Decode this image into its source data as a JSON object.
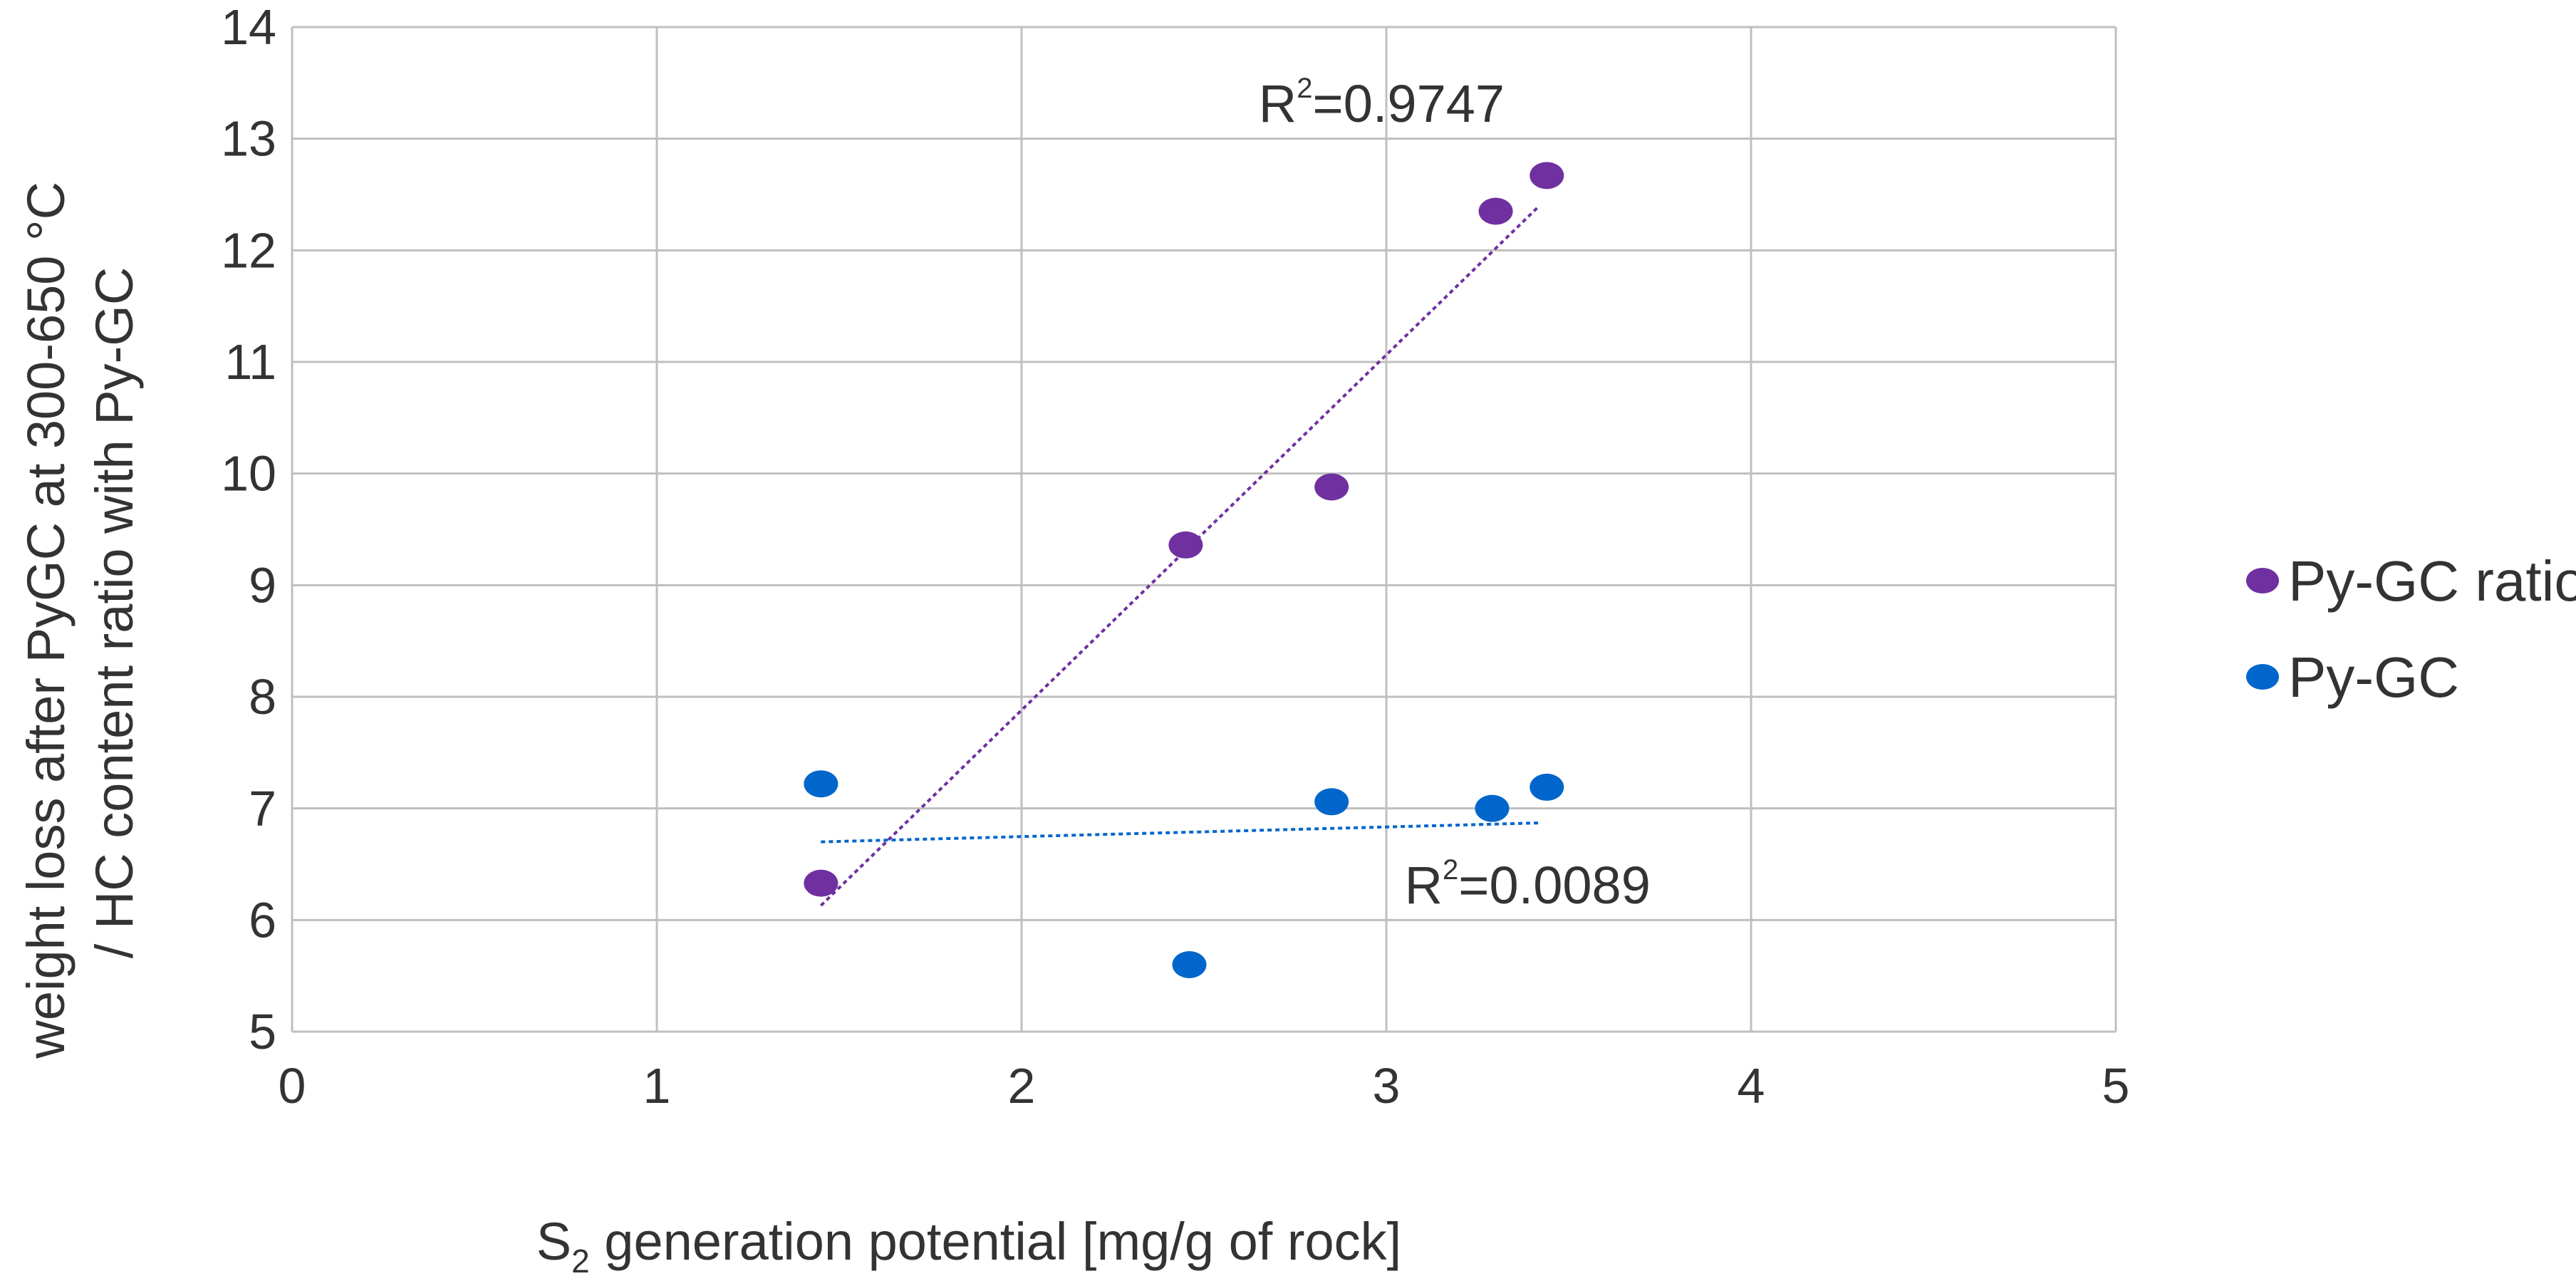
{
  "chart_data": {
    "type": "scatter",
    "title": "",
    "xlabel": {
      "prefix": "S",
      "subscript": "2",
      "suffix": " generation  potential [mg/g of rock]"
    },
    "ylabel": {
      "line1": "weight loss after PyGC at 300-650 °C",
      "line2": "/ HC content ratio with Py-GC"
    },
    "xlim": [
      0,
      5
    ],
    "ylim": [
      5,
      14
    ],
    "xticks": [
      "0",
      "1",
      "2",
      "3",
      "4",
      "5"
    ],
    "yticks": [
      "5",
      "6",
      "7",
      "8",
      "9",
      "10",
      "11",
      "12",
      "13",
      "14"
    ],
    "grid": true,
    "legend_position": "right",
    "series": [
      {
        "name": "Py-GC ratio",
        "color": "#7030a0",
        "points": [
          {
            "x": 1.45,
            "y": 6.33
          },
          {
            "x": 2.45,
            "y": 9.36
          },
          {
            "x": 2.85,
            "y": 9.88
          },
          {
            "x": 3.3,
            "y": 12.35
          },
          {
            "x": 3.44,
            "y": 12.67
          }
        ],
        "trendline": {
          "x": [
            1.45,
            3.42
          ],
          "y": [
            6.13,
            12.4
          ]
        },
        "r2_label": {
          "prefix": "R",
          "sup": "2",
          "value": "=0.9747",
          "at": {
            "x": 2.65,
            "y": 13.15
          }
        }
      },
      {
        "name": "Py-GC",
        "color": "#0066cc",
        "points": [
          {
            "x": 1.45,
            "y": 7.22
          },
          {
            "x": 2.46,
            "y": 5.6
          },
          {
            "x": 2.85,
            "y": 7.06
          },
          {
            "x": 3.29,
            "y": 7.0
          },
          {
            "x": 3.44,
            "y": 7.19
          }
        ],
        "trendline": {
          "x": [
            1.45,
            3.42
          ],
          "y": [
            6.7,
            6.87
          ]
        },
        "r2_label": {
          "prefix": "R",
          "sup": "2",
          "value": "=0.0089",
          "at": {
            "x": 3.05,
            "y": 6.15
          }
        }
      }
    ]
  }
}
